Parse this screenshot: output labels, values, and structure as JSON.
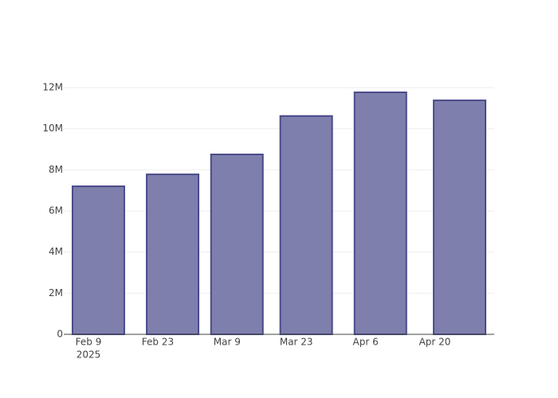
{
  "chart_data": {
    "type": "bar",
    "x": [
      "2025-02-11",
      "2025-02-26",
      "2025-03-11",
      "2025-03-25",
      "2025-04-09",
      "2025-04-25"
    ],
    "values": [
      7200000,
      7780000,
      8750000,
      10620000,
      11770000,
      11380000
    ],
    "color": "#7f7fae",
    "line_color": "#4a4a8a",
    "xlim": [
      "2025-02-04",
      "2025-05-02"
    ],
    "xticks": [
      {
        "value": "2025-02-09",
        "label": "Feb 9",
        "year": "2025"
      },
      {
        "value": "2025-02-23",
        "label": "Feb 23"
      },
      {
        "value": "2025-03-09",
        "label": "Mar 9"
      },
      {
        "value": "2025-03-23",
        "label": "Mar 23"
      },
      {
        "value": "2025-04-06",
        "label": "Apr 6"
      },
      {
        "value": "2025-04-20",
        "label": "Apr 20"
      }
    ],
    "ylim": [
      0,
      12390000
    ],
    "yticks": [
      0,
      {
        "value": 2000000,
        "label": "2M"
      },
      {
        "value": 4000000,
        "label": "4M"
      },
      {
        "value": 6000000,
        "label": "6M"
      },
      {
        "value": 8000000,
        "label": "8M"
      },
      {
        "value": 10000000,
        "label": "10M"
      },
      {
        "value": 12000000,
        "label": "12M"
      }
    ],
    "grid": true
  }
}
